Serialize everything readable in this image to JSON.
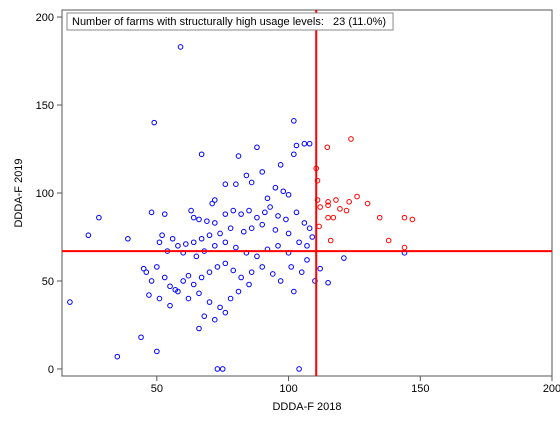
{
  "chart_data": {
    "type": "scatter",
    "annotation": "Number of farms with structurally high usage levels:   23 (11.0%)",
    "x_label": "DDDA-F 2018",
    "y_label": "DDDA-F 2019",
    "xlim": [
      14,
      200
    ],
    "ylim": [
      -4,
      204
    ],
    "xticks": [
      50,
      100,
      150,
      200
    ],
    "yticks": [
      0,
      50,
      100,
      150,
      200
    ],
    "ref_lines": {
      "x": 110.5,
      "y": 67,
      "color": "#ff0000"
    },
    "series": [
      {
        "color": "#0000ff",
        "x": [
          59,
          49,
          67,
          102,
          17,
          28,
          24,
          39,
          48,
          53,
          73,
          75,
          104,
          35,
          50,
          44,
          66,
          144,
          121,
          112,
          115,
          102,
          108,
          106,
          103,
          102,
          97,
          88,
          81,
          90,
          84,
          86,
          80,
          95,
          98,
          100,
          92,
          76,
          72,
          71,
          63,
          64,
          66,
          69,
          72,
          76,
          79,
          82,
          85,
          88,
          91,
          93,
          96,
          99,
          103,
          106,
          108,
          100,
          95,
          90,
          86,
          83,
          78,
          74,
          70,
          67,
          64,
          61,
          58,
          56,
          52,
          51,
          54,
          60,
          65,
          68,
          72,
          76,
          80,
          84,
          88,
          92,
          96,
          100,
          104,
          107,
          109,
          45,
          46,
          48,
          50,
          53,
          55,
          57,
          60,
          62,
          64,
          67,
          70,
          73,
          76,
          79,
          82,
          86,
          90,
          94,
          97,
          101,
          105,
          47,
          51,
          55,
          58,
          62,
          66,
          70,
          74,
          78,
          81,
          85,
          68,
          72,
          76,
          107,
          110
        ],
        "y": [
          183,
          140,
          122,
          141,
          38,
          86,
          76,
          74,
          89,
          88,
          0,
          0,
          0,
          7,
          10,
          18,
          23,
          66,
          63,
          57,
          49,
          44,
          128,
          128,
          127,
          122,
          116,
          126,
          121,
          112,
          110,
          106,
          105,
          103,
          101,
          99,
          97,
          105,
          96,
          94,
          90,
          86,
          85,
          84,
          83,
          88,
          90,
          88,
          90,
          86,
          89,
          92,
          87,
          85,
          89,
          83,
          80,
          77,
          79,
          82,
          80,
          78,
          80,
          77,
          76,
          74,
          72,
          71,
          70,
          74,
          76,
          72,
          67,
          66,
          64,
          67,
          70,
          72,
          69,
          66,
          64,
          68,
          70,
          66,
          72,
          70,
          75,
          57,
          55,
          50,
          58,
          52,
          47,
          45,
          50,
          53,
          48,
          52,
          55,
          58,
          60,
          56,
          52,
          55,
          58,
          54,
          50,
          58,
          55,
          42,
          40,
          36,
          44,
          40,
          43,
          38,
          35,
          40,
          44,
          48,
          30,
          28,
          32,
          62,
          50
        ]
      },
      {
        "color": "#ff0000",
        "x": [
          114.7,
          123.7,
          110.5,
          111,
          111,
          115,
          115,
          118,
          119.5,
          122,
          126,
          123,
          130,
          134.6,
          144,
          147,
          138,
          116,
          115,
          117,
          111.6,
          144,
          112
        ],
        "y": [
          126,
          130.7,
          114,
          107,
          96,
          95,
          93,
          96,
          91,
          90,
          98,
          95,
          94,
          86,
          86,
          85,
          73,
          73,
          86,
          86,
          81,
          69,
          92
        ]
      }
    ]
  }
}
